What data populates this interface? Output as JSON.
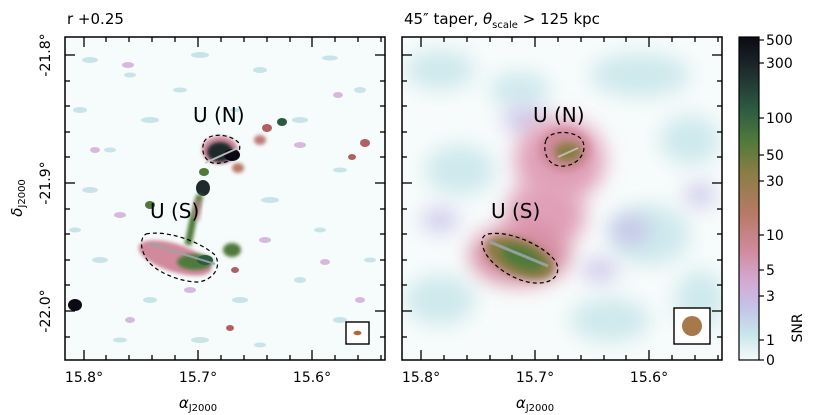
{
  "left_panel": {
    "title": "r +0.25",
    "labels": {
      "north": "U (N)",
      "south": "U (S)"
    }
  },
  "right_panel": {
    "title_prefix": "45″ taper, ",
    "title_theta": "θ",
    "title_sub": "scale",
    "title_suffix": " > 125 kpc",
    "labels": {
      "north": "U (N)",
      "south": "U (S)"
    }
  },
  "axes": {
    "xlabel_main": "α",
    "xlabel_sub": "J2000",
    "ylabel_main": "δ",
    "ylabel_sub": "J2000",
    "x_ticks_left": [
      "15.8°",
      "15.7°",
      "15.6°"
    ],
    "x_ticks_right": [
      "15.8°",
      "15.7°",
      "15.6°"
    ],
    "y_ticks": [
      "-21.8°",
      "-21.9°",
      "-22.0°"
    ]
  },
  "colorbar": {
    "label": "SNR",
    "ticks": [
      "500",
      "300",
      "100",
      "50",
      "30",
      "10",
      "5",
      "3",
      "1",
      "0"
    ],
    "colors": [
      "#0b0a14",
      "#1e2a2c",
      "#2b5a42",
      "#4f7a3a",
      "#8a7d45",
      "#b87a66",
      "#d08a9c",
      "#d3a8cf",
      "#c6c0e8",
      "#c7e6ea",
      "#f4fbfb"
    ]
  }
}
